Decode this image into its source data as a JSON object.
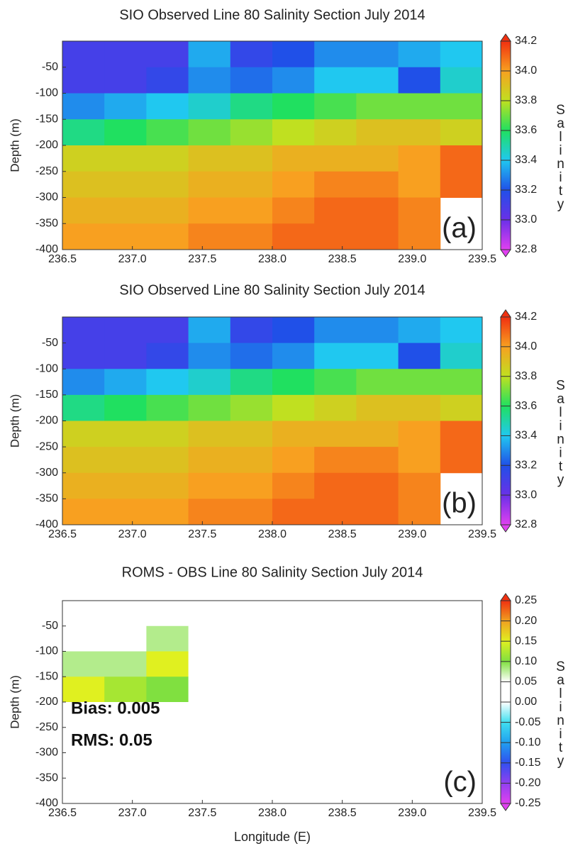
{
  "chart_data": [
    {
      "type": "heatmap",
      "title": "SIO Observed Line 80 Salinity Section July 2014",
      "ylabel": "Depth (m)",
      "colorbar_label": "Salinity",
      "panel_label": "(a)",
      "x": [
        236.65,
        236.95,
        237.25,
        237.55,
        237.85,
        238.15,
        238.45,
        238.75,
        239.05,
        239.35
      ],
      "y": [
        -25,
        -75,
        -125,
        -175,
        -225,
        -275,
        -325,
        -375
      ],
      "z": [
        [
          33.1,
          33.1,
          33.1,
          33.35,
          33.15,
          33.2,
          33.3,
          33.3,
          33.35,
          33.4
        ],
        [
          33.1,
          33.1,
          33.15,
          33.3,
          33.25,
          33.3,
          33.4,
          33.4,
          33.2,
          33.45
        ],
        [
          33.3,
          33.35,
          33.4,
          33.45,
          33.55,
          33.6,
          33.65,
          33.7,
          33.7,
          33.7
        ],
        [
          33.55,
          33.6,
          33.65,
          33.7,
          33.75,
          33.8,
          33.85,
          33.9,
          33.9,
          33.85
        ],
        [
          33.85,
          33.85,
          33.85,
          33.9,
          33.9,
          33.95,
          33.95,
          33.95,
          34.0,
          34.1
        ],
        [
          33.9,
          33.9,
          33.9,
          33.95,
          33.95,
          34.0,
          34.05,
          34.05,
          34.0,
          34.1
        ],
        [
          33.95,
          33.95,
          33.95,
          34.0,
          34.0,
          34.05,
          34.1,
          34.1,
          34.05,
          null
        ],
        [
          34.0,
          34.0,
          34.0,
          34.05,
          34.05,
          34.1,
          34.1,
          34.1,
          34.05,
          null
        ]
      ],
      "xlim": [
        236.5,
        239.5
      ],
      "ylim": [
        -400,
        0
      ],
      "xticks": [
        236.5,
        {
          "value": 237,
          "label": "237.0"
        },
        237.5,
        {
          "value": 238,
          "label": "238.0"
        },
        238.5,
        {
          "value": 239,
          "label": "239.0"
        },
        239.5
      ],
      "yticks": [
        -50,
        -100,
        -150,
        -200,
        -250,
        -300,
        -350,
        -400
      ],
      "zlim": [
        32.8,
        34.2
      ],
      "zticks": [
        32.8,
        {
          "value": 33,
          "label": "33.0"
        },
        33.2,
        33.4,
        33.6,
        33.8,
        {
          "value": 34,
          "label": "34.0"
        },
        34.2
      ],
      "colors": [
        "#e040f0",
        "#6a30e8",
        "#2050e8",
        "#20c8f0",
        "#20e060",
        "#c0e020",
        "#f8a020",
        "#f03010"
      ]
    },
    {
      "type": "heatmap",
      "title": "SIO Observed Line 80 Salinity Section July 2014",
      "ylabel": "Depth (m)",
      "colorbar_label": "Salinity",
      "panel_label": "(b)",
      "x": [
        236.65,
        236.95,
        237.25,
        237.55,
        237.85,
        238.15,
        238.45,
        238.75,
        239.05,
        239.35
      ],
      "y": [
        -25,
        -75,
        -125,
        -175,
        -225,
        -275,
        -325,
        -375
      ],
      "z": [
        [
          33.1,
          33.1,
          33.1,
          33.35,
          33.15,
          33.2,
          33.3,
          33.3,
          33.35,
          33.4
        ],
        [
          33.1,
          33.1,
          33.15,
          33.3,
          33.25,
          33.3,
          33.4,
          33.4,
          33.2,
          33.45
        ],
        [
          33.3,
          33.35,
          33.4,
          33.45,
          33.55,
          33.6,
          33.65,
          33.7,
          33.7,
          33.7
        ],
        [
          33.55,
          33.6,
          33.65,
          33.7,
          33.75,
          33.8,
          33.85,
          33.9,
          33.9,
          33.85
        ],
        [
          33.85,
          33.85,
          33.85,
          33.9,
          33.9,
          33.95,
          33.95,
          33.95,
          34.0,
          34.1
        ],
        [
          33.9,
          33.9,
          33.9,
          33.95,
          33.95,
          34.0,
          34.05,
          34.05,
          34.0,
          34.1
        ],
        [
          33.95,
          33.95,
          33.95,
          34.0,
          34.0,
          34.05,
          34.1,
          34.1,
          34.05,
          null
        ],
        [
          34.0,
          34.0,
          34.0,
          34.05,
          34.05,
          34.1,
          34.1,
          34.1,
          34.05,
          null
        ]
      ],
      "xlim": [
        236.5,
        239.5
      ],
      "ylim": [
        -400,
        0
      ],
      "xticks": [
        236.5,
        {
          "value": 237,
          "label": "237.0"
        },
        237.5,
        {
          "value": 238,
          "label": "238.0"
        },
        238.5,
        {
          "value": 239,
          "label": "239.0"
        },
        239.5
      ],
      "yticks": [
        -50,
        -100,
        -150,
        -200,
        -250,
        -300,
        -350,
        -400
      ],
      "zlim": [
        32.8,
        34.2
      ],
      "zticks": [
        32.8,
        {
          "value": 33,
          "label": "33.0"
        },
        33.2,
        33.4,
        33.6,
        33.8,
        {
          "value": 34,
          "label": "34.0"
        },
        34.2
      ],
      "colors": [
        "#e040f0",
        "#6a30e8",
        "#2050e8",
        "#20c8f0",
        "#20e060",
        "#c0e020",
        "#f8a020",
        "#f03010"
      ]
    },
    {
      "type": "heatmap",
      "title": "ROMS - OBS Line 80 Salinity Section July 2014",
      "ylabel": "Depth (m)",
      "xlabel": "Longitude (E)",
      "colorbar_label": "Salinity",
      "panel_label": "(c)",
      "annotations": [
        "Bias: 0.005",
        "RMS: 0.05"
      ],
      "x": [
        236.65,
        236.95,
        237.25,
        237.55,
        237.85,
        238.15,
        238.45,
        238.75,
        239.05,
        239.35
      ],
      "y": [
        -25,
        -75,
        -125,
        -175,
        -225,
        -275,
        -325,
        -375
      ],
      "z": [
        [
          0,
          0,
          0,
          0,
          0,
          0,
          0,
          0,
          0,
          0
        ],
        [
          0,
          0,
          0.08,
          0,
          0,
          0,
          0,
          0,
          0,
          0
        ],
        [
          0.08,
          0.08,
          0.15,
          0,
          0,
          0,
          0,
          0,
          0,
          0
        ],
        [
          0.15,
          0.12,
          0.1,
          0,
          0,
          0,
          0,
          0,
          0,
          0
        ],
        [
          0,
          0,
          0,
          0,
          0,
          0,
          0,
          0,
          0,
          0
        ],
        [
          0,
          0,
          0,
          0,
          0,
          0,
          0,
          0,
          0,
          0
        ],
        [
          0,
          0,
          0,
          0,
          0,
          0,
          0,
          0,
          0,
          0
        ],
        [
          0,
          0,
          0,
          0,
          0,
          0,
          0,
          0,
          0,
          0
        ]
      ],
      "xlim": [
        236.5,
        239.5
      ],
      "ylim": [
        -400,
        0
      ],
      "xticks": [
        236.5,
        {
          "value": 237,
          "label": "237.0"
        },
        237.5,
        {
          "value": 238,
          "label": "238.0"
        },
        238.5,
        {
          "value": 239,
          "label": "239.0"
        },
        239.5
      ],
      "yticks": [
        -50,
        -100,
        -150,
        -200,
        -250,
        -300,
        -350,
        -400
      ],
      "zlim": [
        -0.25,
        0.25
      ],
      "zticks": [
        -0.25,
        {
          "value": -0.2,
          "label": "-0.20"
        },
        -0.15,
        {
          "value": -0.1,
          "label": "-0.10"
        },
        -0.05,
        {
          "value": 0,
          "label": "0.00"
        },
        0.05,
        {
          "value": 0.1,
          "label": "0.10"
        },
        0.15,
        {
          "value": 0.2,
          "label": "0.20"
        },
        0.25
      ],
      "colors": [
        "#e040f0",
        "#9040f0",
        "#3050f0",
        "#20a0f0",
        "#40e0f0",
        "#ffffff",
        "#ffffff",
        "#80e040",
        "#e0f020",
        "#f0a020",
        "#f03010"
      ]
    }
  ]
}
